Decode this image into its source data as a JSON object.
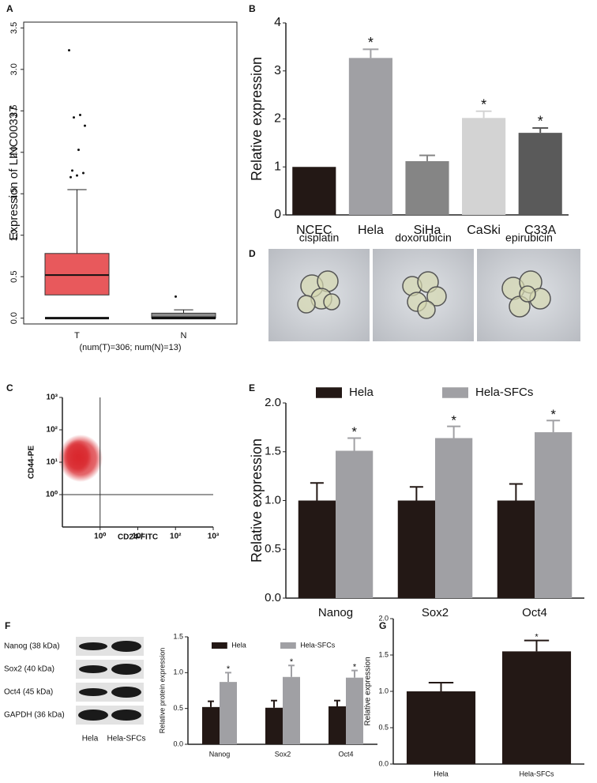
{
  "chart_data": [
    {
      "type": "box",
      "panel": "A",
      "ylabel": "Expression of LINC00337",
      "xlabel": "(num(T)=306; num(N)=13)",
      "categories": [
        "T",
        "N"
      ],
      "colors": [
        "#e8595c",
        "#8c8c8c"
      ],
      "whisker_low": [
        0,
        0
      ],
      "q1": [
        0.28,
        0.0
      ],
      "median": [
        0.52,
        0.01
      ],
      "q3": [
        0.78,
        0.06
      ],
      "whisker_high": [
        1.55,
        0.1
      ],
      "outliers": [
        [
          3.23,
          2.45,
          2.42,
          2.32,
          2.03,
          1.78,
          1.75,
          1.72,
          1.7
        ],
        [
          0.26
        ]
      ],
      "ylim": [
        -0.07,
        3.57
      ],
      "yticks": [
        {
          "value": 0,
          "label": "0.0"
        },
        0.5,
        {
          "value": 1,
          "label": "1.0"
        },
        1.5,
        {
          "value": 2,
          "label": "2.0"
        },
        2.5,
        {
          "value": 3,
          "label": "3.0"
        },
        3.5
      ]
    },
    {
      "type": "bar",
      "panel": "B",
      "ylabel": "Relative expression",
      "categories": [
        "NCEC",
        "Hela",
        "SiHa",
        "CaSki",
        "C33A"
      ],
      "values": [
        1,
        3.27,
        1.12,
        2.02,
        1.71
      ],
      "errors": [
        0,
        0.18,
        0.12,
        0.14,
        0.1
      ],
      "colors": [
        "#231815",
        "#a0a0a4",
        "#858585",
        "#d3d3d3",
        "#5a5a5a"
      ],
      "significant": [
        false,
        true,
        false,
        true,
        true
      ],
      "significance_label": "*",
      "ylim": [
        0,
        4
      ],
      "yticks": [
        0,
        1,
        2,
        3,
        4
      ]
    },
    {
      "type": "scatter",
      "panel": "C",
      "xlabel": "CD24-FITC",
      "ylabel": "CD44-PE",
      "xscale": "log",
      "yscale": "log",
      "xlim": [
        0.1,
        1000
      ],
      "ylim": [
        0.1,
        1000
      ],
      "xticks": [
        {
          "value": 1,
          "label": "10⁰"
        },
        {
          "value": 10,
          "label": "10¹"
        },
        {
          "value": 100,
          "label": "10²"
        },
        {
          "value": 1000,
          "label": "10³"
        }
      ],
      "yticks": [
        {
          "value": 1,
          "label": "10⁰"
        },
        {
          "value": 10,
          "label": "10¹"
        },
        {
          "value": 100,
          "label": "10²"
        },
        {
          "value": 1000,
          "label": "10³"
        }
      ],
      "gate_x": 1,
      "gate_y": 1,
      "color": "#d9262c"
    },
    {
      "type": "bar",
      "panel": "E",
      "ylabel": "Relative expression",
      "categories": [
        "Nanog",
        "Sox2",
        "Oct4"
      ],
      "series": [
        {
          "name": "Hela",
          "color": "#231815",
          "values": [
            1,
            1,
            1
          ],
          "errors": [
            0.18,
            0.14,
            0.17
          ]
        },
        {
          "name": "Hela-SFCs",
          "color": "#a0a0a4",
          "values": [
            1.51,
            1.64,
            1.7
          ],
          "errors": [
            0.13,
            0.12,
            0.12
          ],
          "significant": [
            true,
            true,
            true
          ]
        }
      ],
      "significance_label": "*",
      "ylim": [
        0,
        2
      ],
      "yticks": [
        {
          "value": 0,
          "label": "0.0"
        },
        0.5,
        {
          "value": 1,
          "label": "1.0"
        },
        1.5,
        {
          "value": 2,
          "label": "2.0"
        }
      ]
    },
    {
      "type": "bar",
      "ylabel": "Relative protein expression",
      "categories": [
        "Nanog",
        "Sox2",
        "Oct4"
      ],
      "series": [
        {
          "name": "Hela",
          "color": "#231815",
          "values": [
            0.52,
            0.51,
            0.53
          ],
          "errors": [
            0.08,
            0.1,
            0.08
          ]
        },
        {
          "name": "Hela-SFCs",
          "color": "#a0a0a4",
          "values": [
            0.87,
            0.94,
            0.93
          ],
          "errors": [
            0.13,
            0.16,
            0.1
          ],
          "significant": [
            true,
            true,
            true
          ]
        }
      ],
      "significance_label": "*",
      "ylim": [
        0,
        1.5
      ],
      "yticks": [
        {
          "value": 0,
          "label": "0.0"
        },
        0.5,
        {
          "value": 1,
          "label": "1.0"
        },
        1.5
      ]
    },
    {
      "type": "bar",
      "panel": "G",
      "ylabel": "Relative expression",
      "categories": [
        "Hela",
        "Hela-SFCs"
      ],
      "values": [
        1,
        1.55
      ],
      "errors": [
        0.12,
        0.15
      ],
      "colors": [
        "#231815",
        "#231815"
      ],
      "significant": [
        false,
        true
      ],
      "significance_label": "*",
      "ylim": [
        0,
        2
      ],
      "yticks": [
        {
          "value": 0,
          "label": "0.0"
        },
        0.5,
        {
          "value": 1,
          "label": "1.0"
        },
        1.5,
        {
          "value": 2,
          "label": "2.0"
        }
      ]
    }
  ],
  "panel_d": {
    "panel": "D",
    "labels": [
      "cisplatin",
      "doxorubicin",
      "epirubicin"
    ]
  },
  "blot": {
    "panel": "F",
    "proteins": [
      "Nanog (38 kDa)",
      "Sox2 (40 kDa)",
      "Oct4 (45 kDa)",
      "GAPDH (36 kDa)"
    ],
    "samples": [
      "Hela",
      "Hela-SFCs"
    ]
  }
}
